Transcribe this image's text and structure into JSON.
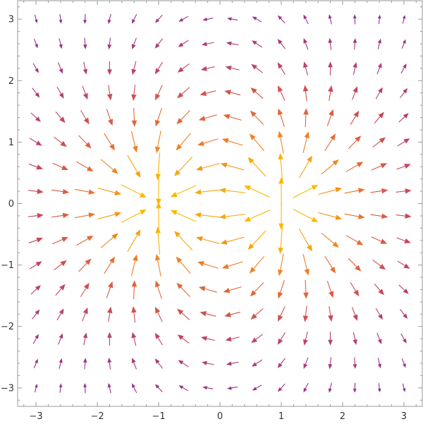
{
  "chart_data": {
    "type": "vector_field",
    "title": "",
    "xlabel": "",
    "ylabel": "",
    "xlim": [
      -3.3,
      3.3
    ],
    "ylim": [
      -3.3,
      3.3
    ],
    "x_ticks": [
      -3,
      -2,
      -1,
      0,
      1,
      2,
      3
    ],
    "y_ticks": [
      -3,
      -2,
      -1,
      0,
      1,
      2,
      3
    ],
    "x_tick_labels": [
      "−3",
      "−2",
      "−1",
      "0",
      "1",
      "2",
      "3"
    ],
    "y_tick_labels": [
      "−3",
      "−2",
      "−1",
      "0",
      "1",
      "2",
      "3"
    ],
    "grid": false,
    "field": "dipole (charges at x=-1 and x=+1)",
    "sources": [
      {
        "x": -1,
        "y": 0,
        "sign": -1
      },
      {
        "x": 1,
        "y": 0,
        "sign": 1
      }
    ],
    "sample_grid": {
      "x_start": -3,
      "x_end": 3,
      "y_start": -3,
      "y_end": 3,
      "count": 16
    },
    "color_scale": [
      "#4a1a8c",
      "#8a2a9e",
      "#c8485a",
      "#f07a24",
      "#f9b800"
    ]
  }
}
